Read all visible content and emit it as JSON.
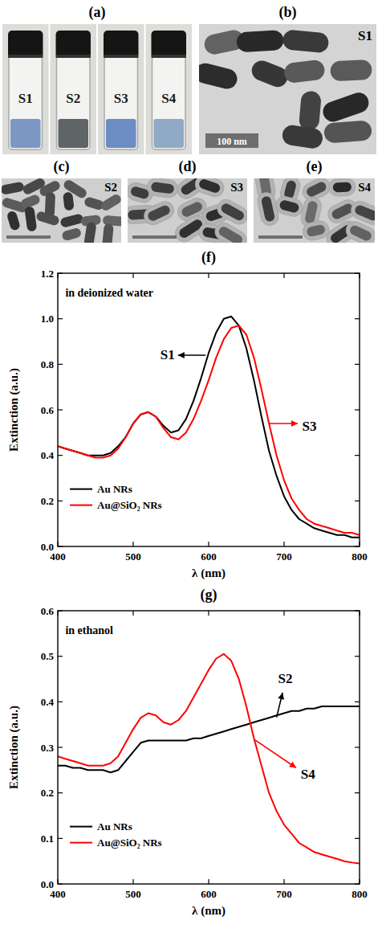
{
  "panels": [
    {
      "letter": "(a)",
      "type": "photo",
      "labels": [
        "S1",
        "S2",
        "S3",
        "S4"
      ]
    },
    {
      "letter": "(b)",
      "type": "tem",
      "label": "S1",
      "coated": false,
      "scale_bar": "100 nm"
    },
    {
      "letter": "(c)",
      "type": "tem",
      "label": "S2",
      "coated": false
    },
    {
      "letter": "(d)",
      "type": "tem",
      "label": "S3",
      "coated": true
    },
    {
      "letter": "(e)",
      "type": "tem",
      "label": "S4",
      "coated": true
    }
  ],
  "chart_data": [
    {
      "type": "line",
      "title": "(f)",
      "x_label": "λ (nm)",
      "y_label": "Extinction (a.u.)",
      "annotations": [
        "in deionized water",
        "S1",
        "S3"
      ],
      "x": [
        400,
        410,
        420,
        430,
        440,
        450,
        460,
        470,
        480,
        490,
        500,
        510,
        520,
        530,
        540,
        550,
        560,
        570,
        580,
        590,
        600,
        610,
        620,
        630,
        640,
        650,
        660,
        670,
        680,
        690,
        700,
        710,
        720,
        730,
        740,
        750,
        760,
        770,
        780,
        790,
        800
      ],
      "xlim": [
        400,
        800
      ],
      "xticks": [
        400,
        500,
        600,
        700,
        800
      ],
      "ylim": [
        0,
        1.2
      ],
      "yticks": [
        {
          "value": 0,
          "label": "0.0"
        },
        0.2,
        0.4,
        0.6,
        0.8,
        {
          "value": 1,
          "label": "1.0"
        },
        1.2
      ],
      "legend": "lower left",
      "series": [
        {
          "name": "Au NRs",
          "color": "#000000",
          "values": [
            0.44,
            0.43,
            0.42,
            0.41,
            0.4,
            0.4,
            0.4,
            0.41,
            0.44,
            0.48,
            0.54,
            0.58,
            0.59,
            0.57,
            0.53,
            0.5,
            0.51,
            0.56,
            0.64,
            0.74,
            0.85,
            0.94,
            1.0,
            1.01,
            0.97,
            0.87,
            0.73,
            0.57,
            0.42,
            0.31,
            0.22,
            0.16,
            0.12,
            0.1,
            0.08,
            0.07,
            0.06,
            0.05,
            0.05,
            0.04,
            0.04
          ]
        },
        {
          "name": "Au@SiO₂ NRs",
          "color": "#ff0000",
          "values": [
            0.44,
            0.43,
            0.42,
            0.41,
            0.4,
            0.39,
            0.39,
            0.4,
            0.43,
            0.48,
            0.54,
            0.58,
            0.59,
            0.57,
            0.52,
            0.48,
            0.47,
            0.5,
            0.56,
            0.64,
            0.73,
            0.83,
            0.91,
            0.96,
            0.97,
            0.93,
            0.83,
            0.69,
            0.54,
            0.4,
            0.29,
            0.21,
            0.16,
            0.12,
            0.1,
            0.09,
            0.08,
            0.07,
            0.06,
            0.06,
            0.05
          ]
        }
      ]
    },
    {
      "type": "line",
      "title": "(g)",
      "x_label": "λ (nm)",
      "y_label": "Extinction (a.u.)",
      "annotations": [
        "in ethanol",
        "S2",
        "S4"
      ],
      "x": [
        400,
        410,
        420,
        430,
        440,
        450,
        460,
        470,
        480,
        490,
        500,
        510,
        520,
        530,
        540,
        550,
        560,
        570,
        580,
        590,
        600,
        610,
        620,
        630,
        640,
        650,
        660,
        670,
        680,
        690,
        700,
        710,
        720,
        730,
        740,
        750,
        760,
        770,
        780,
        790,
        800
      ],
      "xlim": [
        400,
        800
      ],
      "xticks": [
        400,
        500,
        600,
        700,
        800
      ],
      "ylim": [
        0,
        0.6
      ],
      "yticks": [
        {
          "value": 0,
          "label": "0.0"
        },
        0.1,
        0.2,
        0.3,
        0.4,
        0.5,
        0.6
      ],
      "legend": "lower left",
      "series": [
        {
          "name": "Au NRs",
          "color": "#000000",
          "values": [
            0.26,
            0.26,
            0.255,
            0.255,
            0.25,
            0.25,
            0.25,
            0.245,
            0.25,
            0.27,
            0.29,
            0.31,
            0.315,
            0.315,
            0.315,
            0.315,
            0.315,
            0.315,
            0.32,
            0.32,
            0.325,
            0.33,
            0.335,
            0.34,
            0.345,
            0.35,
            0.355,
            0.36,
            0.365,
            0.37,
            0.375,
            0.38,
            0.38,
            0.385,
            0.385,
            0.39,
            0.39,
            0.39,
            0.39,
            0.39,
            0.39
          ]
        },
        {
          "name": "Au@SiO₂ NRs",
          "color": "#ff0000",
          "values": [
            0.28,
            0.275,
            0.27,
            0.265,
            0.26,
            0.26,
            0.26,
            0.265,
            0.28,
            0.31,
            0.34,
            0.365,
            0.375,
            0.37,
            0.355,
            0.35,
            0.36,
            0.38,
            0.41,
            0.44,
            0.47,
            0.495,
            0.505,
            0.49,
            0.45,
            0.39,
            0.32,
            0.26,
            0.2,
            0.16,
            0.13,
            0.11,
            0.09,
            0.08,
            0.07,
            0.065,
            0.06,
            0.055,
            0.05,
            0.047,
            0.045
          ]
        }
      ]
    }
  ]
}
